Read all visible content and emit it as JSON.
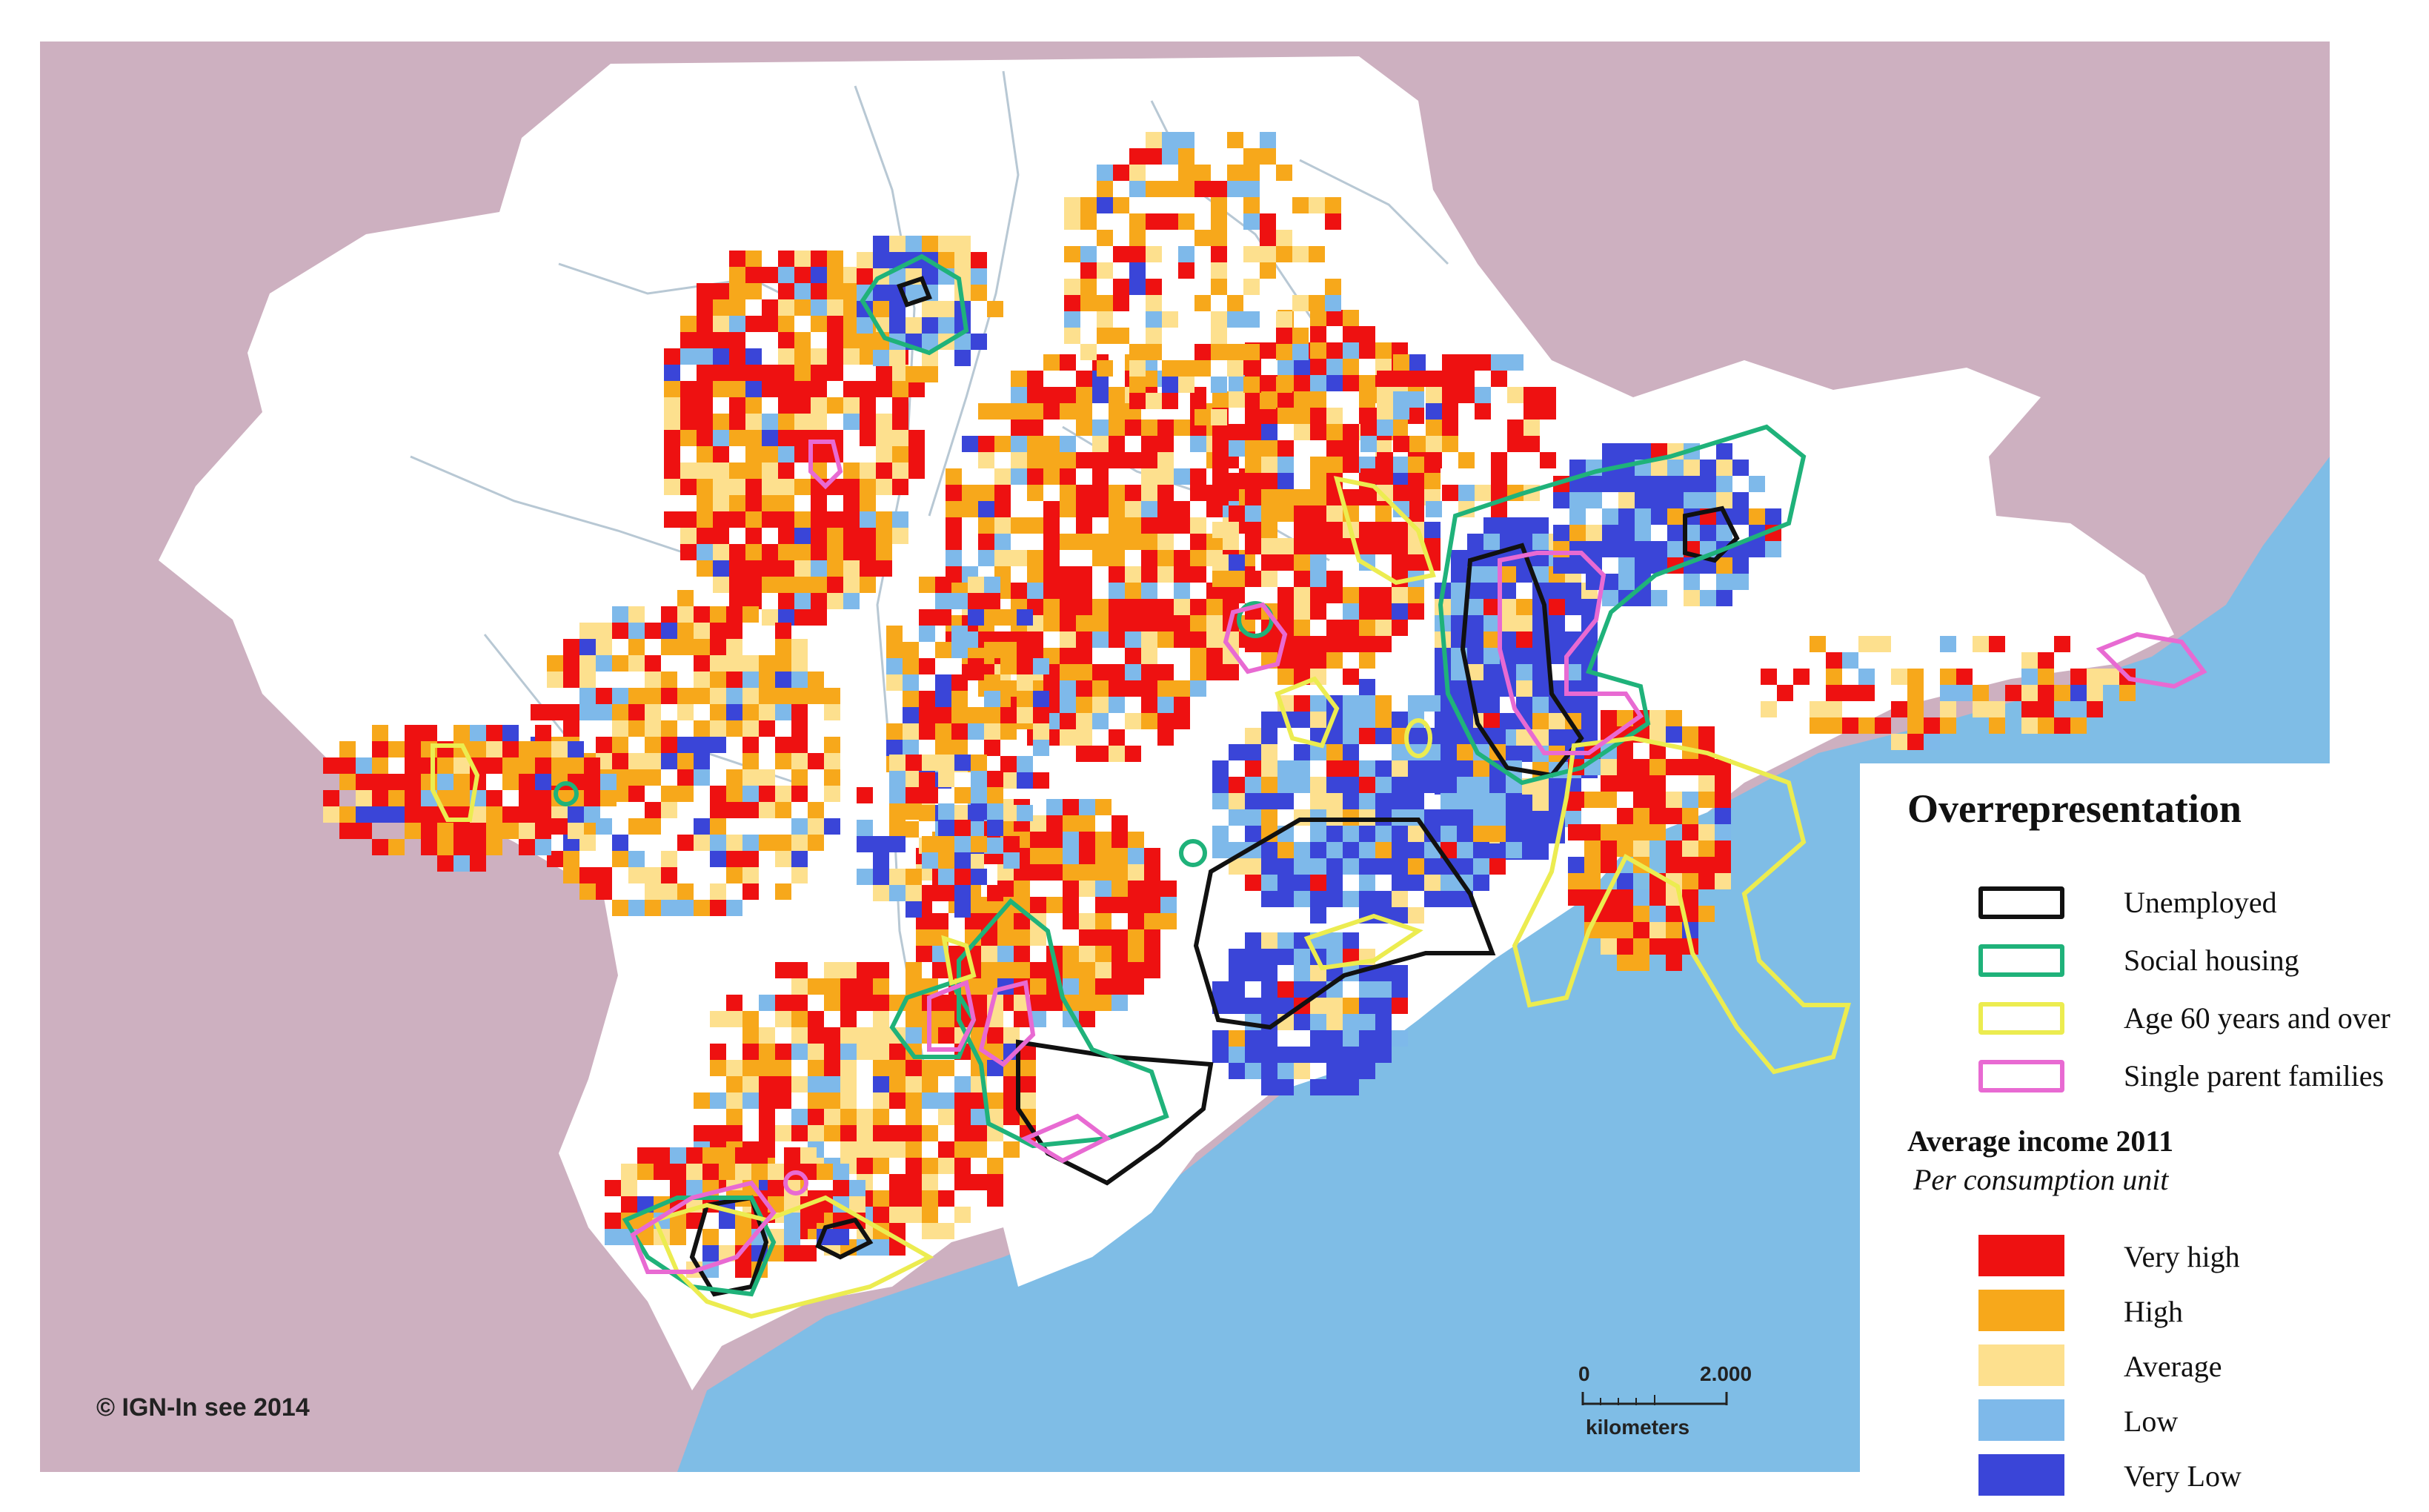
{
  "map": {
    "copyright": "© IGN-In see 2014",
    "scale": {
      "start": "0",
      "end": "2.000",
      "unit": "kilometers"
    }
  },
  "legend": {
    "title": "Overrepresentation",
    "overrepresentation": [
      {
        "label": "Unemployed",
        "color": "#111111"
      },
      {
        "label": "Social housing",
        "color": "#1fb27a"
      },
      {
        "label": "Age 60 years and over",
        "color": "#ecec50"
      },
      {
        "label": "Single parent families",
        "color": "#e86ad2"
      }
    ],
    "income_title": "Average income 2011",
    "income_subtitle": "Per consumption unit",
    "income_classes": [
      {
        "label": "Very high",
        "color": "#ee1111"
      },
      {
        "label": "High",
        "color": "#f7a81b"
      },
      {
        "label": "Average",
        "color": "#fde08e"
      },
      {
        "label": "Low",
        "color": "#7eb9ea"
      },
      {
        "label": "Very Low",
        "color": "#3a45d8"
      }
    ]
  },
  "colors": {
    "land_outside": "#cdb0c0",
    "sea": "#7fbde6",
    "urban_area": "#ffffff",
    "boundaries": "#b8c8d4"
  }
}
